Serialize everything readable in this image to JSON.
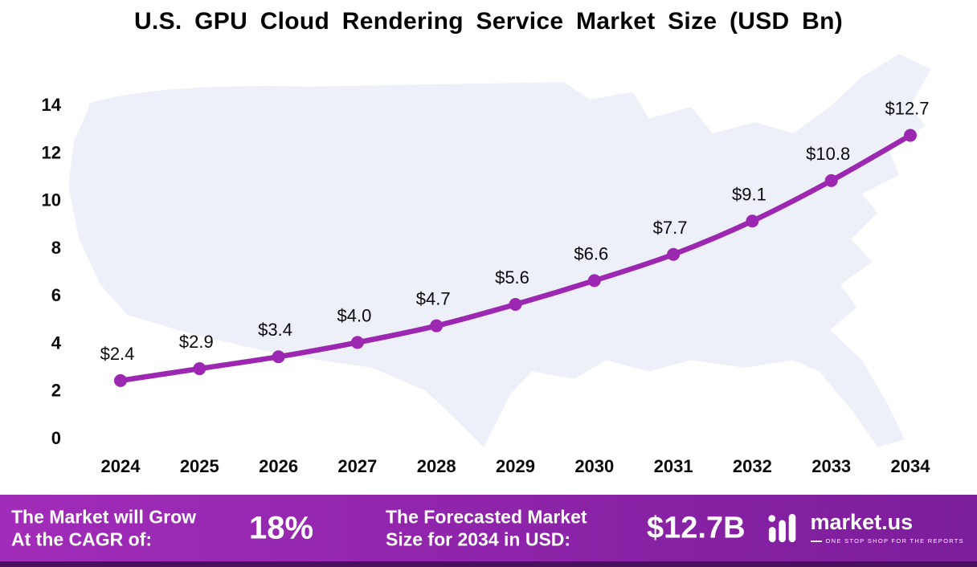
{
  "title": "U.S. GPU Cloud Rendering Service Market Size (USD Bn)",
  "chart_data": {
    "type": "line",
    "title": "U.S. GPU Cloud Rendering Service Market Size (USD Bn)",
    "x": [
      "2024",
      "2025",
      "2026",
      "2027",
      "2028",
      "2029",
      "2030",
      "2031",
      "2032",
      "2033",
      "2034"
    ],
    "values": [
      2.4,
      2.9,
      3.4,
      4.0,
      4.7,
      5.6,
      6.6,
      7.7,
      9.1,
      10.8,
      12.7
    ],
    "point_labels": [
      "$2.4",
      "$2.9",
      "$3.4",
      "$4.0",
      "$4.7",
      "$5.6",
      "$6.6",
      "$7.7",
      "$9.1",
      "$10.8",
      "$12.7"
    ],
    "xlabel": "",
    "ylabel": "",
    "ylim": [
      0,
      14
    ],
    "yticks": [
      0,
      2,
      4,
      6,
      8,
      10,
      12,
      14
    ],
    "grid": false,
    "legend": false,
    "line_color": "#9c27b0"
  },
  "footer": {
    "cagr_label_line1": "The Market will Grow",
    "cagr_label_line2": "At the CAGR of:",
    "cagr_value": "18%",
    "forecast_label_line1": "The Forecasted Market",
    "forecast_label_line2": "Size for 2034 in USD:",
    "forecast_value": "$12.7B",
    "brand": "market.us",
    "tagline": "ONE STOP SHOP FOR THE REPORTS"
  },
  "colors": {
    "accent": "#9c27b0",
    "map_fill": "#edeff9",
    "footer_gradient_start": "#a12cb9",
    "footer_gradient_end": "#7c1d9b",
    "footer_strip": "#4a1060",
    "text": "#0a0a0a"
  }
}
